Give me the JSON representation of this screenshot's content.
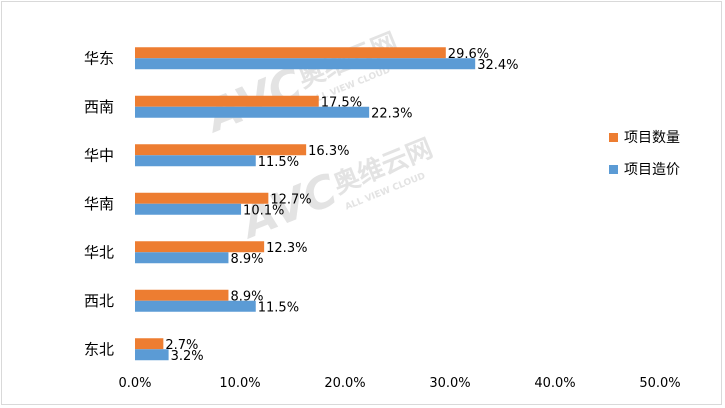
{
  "chart_data": {
    "type": "bar",
    "orientation": "horizontal",
    "categories": [
      "华东",
      "西南",
      "华中",
      "华南",
      "华北",
      "西北",
      "东北"
    ],
    "series": [
      {
        "name": "项目数量",
        "color": "#ed7d31",
        "values": [
          29.6,
          17.5,
          16.3,
          12.7,
          12.3,
          8.9,
          2.7
        ],
        "labels": [
          "29.6%",
          "17.5%",
          "16.3%",
          "12.7%",
          "12.3%",
          "8.9%",
          "2.7%"
        ]
      },
      {
        "name": "项目造价",
        "color": "#5b9bd5",
        "values": [
          32.4,
          22.3,
          11.5,
          10.1,
          8.9,
          11.5,
          3.2
        ],
        "labels": [
          "32.4%",
          "22.3%",
          "11.5%",
          "10.1%",
          "8.9%",
          "11.5%",
          "3.2%"
        ]
      }
    ],
    "xlim": [
      0,
      50
    ],
    "xticks": [
      0,
      10,
      20,
      30,
      40,
      50
    ],
    "xtick_labels": [
      "0.0%",
      "10.0%",
      "20.0%",
      "30.0%",
      "40.0%",
      "50.0%"
    ],
    "grid": false,
    "legend_position": "right"
  },
  "watermark": {
    "logo_text": "AVC",
    "text": "奥维云网",
    "subtext": "ALL VIEW CLOUD"
  }
}
